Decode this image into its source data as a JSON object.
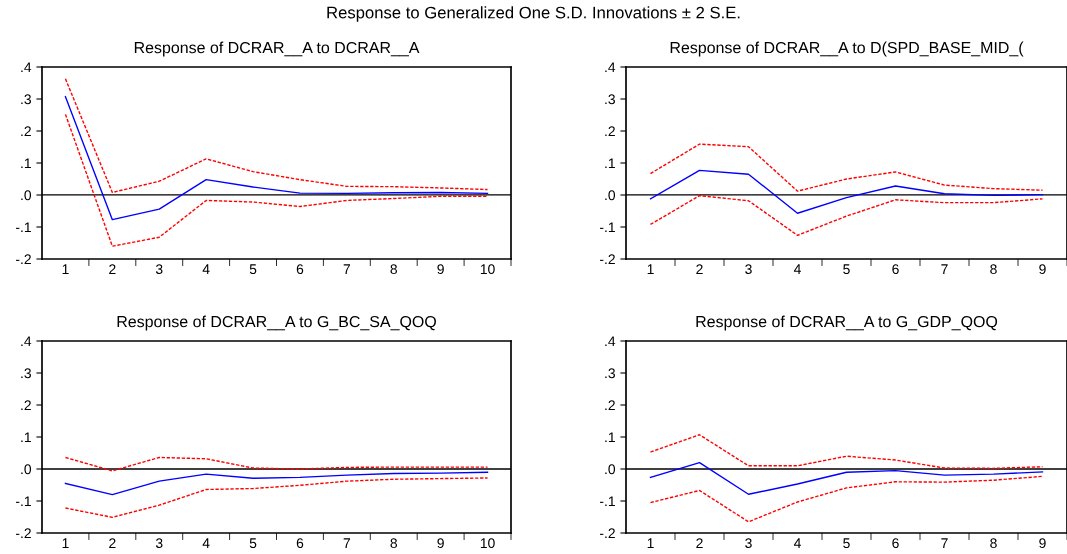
{
  "chart_data": [
    {
      "type": "line",
      "title": "Response of DCRAR__A to DCRAR__A",
      "annotations": [
        "Response to Generalized One S.D. Innovations ± 2 S.E."
      ],
      "categories": [
        "1",
        "2",
        "3",
        "4",
        "5",
        "6",
        "7",
        "8",
        "9",
        "10"
      ],
      "ylim": [
        -0.2,
        0.4
      ],
      "yticks": [
        {
          "value": -0.2,
          "label": "-.2"
        },
        {
          "value": -0.1,
          "label": "-.1"
        },
        {
          "value": 0,
          "label": ".0"
        },
        {
          "value": 0.1,
          "label": ".1"
        },
        {
          "value": 0.2,
          "label": ".2"
        },
        {
          "value": 0.3,
          "label": ".3"
        },
        {
          "value": 0.4,
          "label": ".4"
        }
      ],
      "ref_lines": [
        {
          "axis": "y",
          "value": 0,
          "color": "#000000"
        }
      ],
      "series": [
        {
          "color": "#0000ff",
          "line_style": "solid",
          "values": [
            0.307,
            -0.077,
            -0.044,
            0.048,
            0.025,
            0.006,
            0.005,
            0.007,
            0.008,
            0.005
          ]
        },
        {
          "color": "#ff0000",
          "line_style": "dashed",
          "values": [
            0.363,
            0.008,
            0.043,
            0.113,
            0.073,
            0.048,
            0.027,
            0.026,
            0.022,
            0.017
          ]
        },
        {
          "color": "#ff0000",
          "line_style": "dashed",
          "values": [
            0.252,
            -0.16,
            -0.132,
            -0.017,
            -0.022,
            -0.036,
            -0.017,
            -0.011,
            -0.004,
            -0.004
          ]
        }
      ]
    },
    {
      "type": "line",
      "title": "Response of DCRAR__A to D(SPD_BASE_MID_(",
      "categories": [
        "1",
        "2",
        "3",
        "4",
        "5",
        "6",
        "7",
        "8",
        "9"
      ],
      "ylim": [
        -0.2,
        0.4
      ],
      "yticks": [
        {
          "value": -0.2,
          "label": "-.2"
        },
        {
          "value": -0.1,
          "label": "-.1"
        },
        {
          "value": 0,
          "label": ".0"
        },
        {
          "value": 0.1,
          "label": ".1"
        },
        {
          "value": 0.2,
          "label": ".2"
        },
        {
          "value": 0.3,
          "label": ".3"
        },
        {
          "value": 0.4,
          "label": ".4"
        }
      ],
      "ref_lines": [
        {
          "axis": "y",
          "value": 0,
          "color": "#000000"
        }
      ],
      "series": [
        {
          "color": "#0000ff",
          "line_style": "solid",
          "values": [
            -0.012,
            0.077,
            0.065,
            -0.057,
            -0.008,
            0.028,
            0.004,
            -0.001,
            0.001
          ]
        },
        {
          "color": "#ff0000",
          "line_style": "dashed",
          "values": [
            0.067,
            0.159,
            0.151,
            0.012,
            0.05,
            0.072,
            0.031,
            0.02,
            0.015
          ]
        },
        {
          "color": "#ff0000",
          "line_style": "dashed",
          "values": [
            -0.092,
            -0.002,
            -0.018,
            -0.126,
            -0.066,
            -0.015,
            -0.024,
            -0.024,
            -0.012
          ]
        }
      ]
    },
    {
      "type": "line",
      "title": "Response of DCRAR__A to G_BC_SA_QOQ",
      "categories": [
        "1",
        "2",
        "3",
        "4",
        "5",
        "6",
        "7",
        "8",
        "9",
        "10"
      ],
      "ylim": [
        -0.2,
        0.4
      ],
      "yticks": [
        {
          "value": -0.2,
          "label": "-.2"
        },
        {
          "value": -0.1,
          "label": "-.1"
        },
        {
          "value": 0,
          "label": ".0"
        },
        {
          "value": 0.1,
          "label": ".1"
        },
        {
          "value": 0.2,
          "label": ".2"
        },
        {
          "value": 0.3,
          "label": ".3"
        },
        {
          "value": 0.4,
          "label": ".4"
        }
      ],
      "ref_lines": [
        {
          "axis": "y",
          "value": 0,
          "color": "#000000"
        }
      ],
      "series": [
        {
          "color": "#0000ff",
          "line_style": "solid",
          "values": [
            -0.045,
            -0.08,
            -0.038,
            -0.016,
            -0.029,
            -0.026,
            -0.019,
            -0.014,
            -0.013,
            -0.01
          ]
        },
        {
          "color": "#ff0000",
          "line_style": "dashed",
          "values": [
            0.036,
            -0.006,
            0.036,
            0.032,
            0.003,
            0.0,
            0.005,
            0.006,
            0.006,
            0.006
          ]
        },
        {
          "color": "#ff0000",
          "line_style": "dashed",
          "values": [
            -0.122,
            -0.151,
            -0.113,
            -0.064,
            -0.061,
            -0.051,
            -0.038,
            -0.032,
            -0.03,
            -0.028
          ]
        }
      ]
    },
    {
      "type": "line",
      "title": "Response of DCRAR__A to G_GDP_QOQ",
      "categories": [
        "1",
        "2",
        "3",
        "4",
        "5",
        "6",
        "7",
        "8",
        "9"
      ],
      "ylim": [
        -0.2,
        0.4
      ],
      "yticks": [
        {
          "value": -0.2,
          "label": "-.2"
        },
        {
          "value": -0.1,
          "label": "-.1"
        },
        {
          "value": 0,
          "label": ".0"
        },
        {
          "value": 0.1,
          "label": ".1"
        },
        {
          "value": 0.2,
          "label": ".2"
        },
        {
          "value": 0.3,
          "label": ".3"
        },
        {
          "value": 0.4,
          "label": ".4"
        }
      ],
      "ref_lines": [
        {
          "axis": "y",
          "value": 0,
          "color": "#000000"
        }
      ],
      "series": [
        {
          "color": "#0000ff",
          "line_style": "solid",
          "values": [
            -0.026,
            0.02,
            -0.079,
            -0.047,
            -0.01,
            -0.005,
            -0.019,
            -0.016,
            -0.009
          ]
        },
        {
          "color": "#ff0000",
          "line_style": "dashed",
          "values": [
            0.053,
            0.107,
            0.01,
            0.01,
            0.04,
            0.028,
            0.003,
            0.002,
            0.007
          ]
        },
        {
          "color": "#ff0000",
          "line_style": "dashed",
          "values": [
            -0.105,
            -0.067,
            -0.165,
            -0.103,
            -0.059,
            -0.04,
            -0.041,
            -0.035,
            -0.023
          ]
        }
      ]
    }
  ]
}
